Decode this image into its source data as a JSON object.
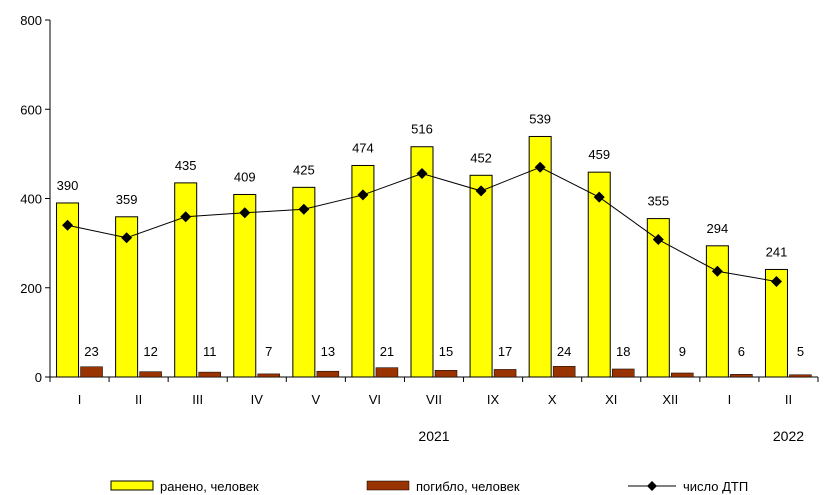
{
  "chart_data": {
    "type": "bar",
    "categories": [
      "I",
      "II",
      "III",
      "IV",
      "V",
      "VI",
      "VII",
      "IX",
      "X",
      "XI",
      "XII",
      "I",
      "II"
    ],
    "year_labels": [
      {
        "text": "2021",
        "category_index": 6
      },
      {
        "text": "2022",
        "category_index": 12
      }
    ],
    "series": [
      {
        "name": "ранено, человек",
        "kind": "bar",
        "color": "#ffff00",
        "values": [
          390,
          359,
          435,
          409,
          425,
          474,
          516,
          452,
          539,
          459,
          355,
          294,
          241
        ]
      },
      {
        "name": "погибло, человек",
        "kind": "bar",
        "color": "#993300",
        "values": [
          23,
          12,
          11,
          7,
          13,
          21,
          15,
          17,
          24,
          18,
          9,
          6,
          5
        ]
      },
      {
        "name": "число ДТП",
        "kind": "line",
        "color": "#000000",
        "marker": "diamond",
        "values": [
          340,
          312,
          359,
          368,
          376,
          408,
          456,
          417,
          470,
          403,
          308,
          237,
          214
        ]
      }
    ],
    "ylim": [
      0,
      800
    ],
    "yticks": [
      0,
      200,
      400,
      600,
      800
    ],
    "ytick_labels": [
      "0",
      "200",
      "400",
      "600",
      "800"
    ],
    "grid": false,
    "legend_position": "bottom",
    "title": "",
    "xlabel": "",
    "ylabel": ""
  }
}
